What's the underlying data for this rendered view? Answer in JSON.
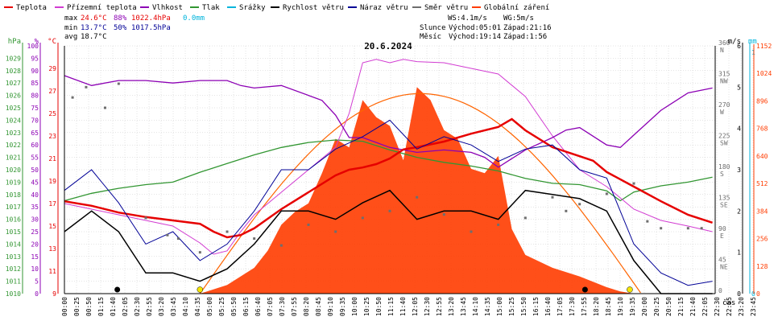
{
  "legend": [
    {
      "label": "Teplota",
      "color": "#e60000"
    },
    {
      "label": "Přízemní teplota",
      "color": "#d23cd2"
    },
    {
      "label": "Vlhkost",
      "color": "#8c00b4"
    },
    {
      "label": "Tlak",
      "color": "#329632"
    },
    {
      "label": "Srážky",
      "color": "#00b4dc"
    },
    {
      "label": "Rychlost větru",
      "color": "#000000"
    },
    {
      "label": "Náraz větru",
      "color": "#000096"
    },
    {
      "label": "Směr větru",
      "color": "#6e6e6e"
    },
    {
      "label": "Globální záření",
      "color": "#ff3c00"
    }
  ],
  "stats": {
    "max_label": "max",
    "max_temp": "24.6°C",
    "max_hum": "88%",
    "max_press": "1022.4hPa",
    "rain": "0.0mm",
    "min_label": "min",
    "min_temp": "13.7°C",
    "min_hum": "50%",
    "min_press": "1017.5hPa",
    "avg_label": "avg",
    "avg_temp": "18.7°C"
  },
  "wind_info": {
    "ws": "WS:4.1m/s",
    "wg": "WG:5m/s"
  },
  "sun": {
    "label": "Slunce",
    "rise": "Východ:05:01",
    "set": "Západ:21:16"
  },
  "moon": {
    "label": "Měsíc",
    "rise": "Východ:19:14",
    "set": "Západ:1:56"
  },
  "date": "20.6.2024",
  "time_axis_label": "čas",
  "colors": {
    "temp": "#e60000",
    "ground": "#d23cd2",
    "hum": "#8c00b4",
    "press": "#329632",
    "rain": "#00b4dc",
    "wind": "#000000",
    "gust": "#000096",
    "dir": "#6e6e6e",
    "rad": "#ff3c00",
    "theory": "#ff6400",
    "grid": "#c8c8c8"
  },
  "chart_data": {
    "type": "line",
    "title": "20.6.2024",
    "x_ticks": [
      "00:00",
      "00:25",
      "00:50",
      "01:15",
      "01:40",
      "02:05",
      "02:30",
      "02:55",
      "03:20",
      "03:45",
      "04:10",
      "04:35",
      "05:00",
      "05:25",
      "05:50",
      "06:15",
      "06:40",
      "07:05",
      "07:30",
      "07:55",
      "08:20",
      "08:45",
      "09:10",
      "09:35",
      "10:00",
      "10:25",
      "10:50",
      "11:15",
      "11:40",
      "12:05",
      "12:30",
      "12:55",
      "13:20",
      "13:45",
      "14:10",
      "14:35",
      "15:00",
      "15:25",
      "15:50",
      "16:15",
      "16:40",
      "17:05",
      "17:30",
      "17:55",
      "18:20",
      "18:45",
      "19:10",
      "19:35",
      "20:00",
      "20:25",
      "20:50",
      "21:15",
      "21:40",
      "22:05",
      "22:30",
      "22:55",
      "23:20",
      "23:45"
    ],
    "axes": {
      "pressure": {
        "label": "hPa",
        "range": [
          1010,
          1030
        ],
        "ticks": [
          1010,
          1011,
          1012,
          1013,
          1014,
          1015,
          1016,
          1017,
          1018,
          1019,
          1020,
          1021,
          1022,
          1023,
          1024,
          1025,
          1026,
          1027,
          1028,
          1029
        ]
      },
      "humidity": {
        "label": "%",
        "range": [
          0,
          100
        ],
        "ticks": [
          0,
          5,
          10,
          15,
          20,
          25,
          30,
          35,
          40,
          45,
          50,
          55,
          60,
          65,
          70,
          75,
          80,
          85,
          90,
          95,
          100
        ]
      },
      "temperature": {
        "label": "°C",
        "range": [
          9,
          31
        ],
        "ticks": [
          9,
          11,
          13,
          15,
          17,
          19,
          21,
          23,
          25,
          27,
          29
        ]
      },
      "wind_direction": {
        "label": "",
        "range": [
          0,
          360
        ],
        "ticks": [
          "0",
          "45 NE",
          "90 E",
          "135 SE",
          "180 S",
          "225 SW",
          "270 W",
          "315 NW",
          "360 N"
        ]
      },
      "wind_speed": {
        "label": "m/s",
        "range": [
          0,
          6
        ],
        "ticks": [
          0,
          1,
          2,
          3,
          4,
          5,
          6
        ]
      },
      "rain": {
        "label": "mm",
        "range": [
          0,
          1
        ],
        "ticks": [
          0,
          1
        ]
      },
      "radiation": {
        "label": "",
        "range": [
          0,
          1152
        ],
        "ticks": [
          0,
          128,
          256,
          384,
          512,
          640,
          768,
          896,
          1024,
          1152
        ]
      }
    },
    "series": [
      {
        "name": "Teplota",
        "unit": "°C",
        "x": [
          0,
          1,
          2,
          3,
          4,
          5,
          5.5,
          6,
          6.5,
          7,
          8,
          9,
          10,
          10.5,
          11,
          11.5,
          12,
          12.5,
          13,
          14,
          15,
          16,
          16.5,
          17,
          18,
          19,
          19.5,
          20,
          21,
          22,
          23,
          23.9
        ],
        "y": [
          17.2,
          16.8,
          16.2,
          15.8,
          15.5,
          15.2,
          14.5,
          14.0,
          14.2,
          14.8,
          16.5,
          18.0,
          19.5,
          20.0,
          20.2,
          20.5,
          21.0,
          21.8,
          22.0,
          22.5,
          23.2,
          23.8,
          24.5,
          23.5,
          22.0,
          21.2,
          20.8,
          19.8,
          18.5,
          17.2,
          16.0,
          15.3
        ]
      },
      {
        "name": "Přízemní teplota",
        "unit": "°C",
        "x": [
          0,
          1,
          2,
          3,
          4,
          5,
          5.5,
          6,
          6.5,
          7,
          8,
          9,
          9.5,
          10,
          10.5,
          11,
          11.5,
          12,
          12.5,
          13,
          14,
          15,
          16,
          17,
          18,
          19,
          20,
          20.5,
          21,
          22,
          23,
          23.9
        ],
        "y": [
          17.0,
          16.5,
          16.0,
          15.5,
          15.0,
          13.5,
          12.5,
          12.8,
          14.5,
          16.0,
          18.0,
          20.0,
          21.0,
          22.0,
          25.0,
          29.5,
          29.8,
          29.5,
          29.8,
          29.6,
          29.5,
          29.0,
          28.5,
          26.5,
          23.0,
          20.0,
          18.5,
          17.5,
          16.5,
          15.5,
          15.0,
          14.5
        ]
      },
      {
        "name": "Vlhkost",
        "unit": "%",
        "x": [
          0,
          1,
          2,
          3,
          4,
          5,
          6,
          6.5,
          7,
          8,
          9,
          9.5,
          10,
          10.5,
          11,
          11.5,
          12,
          13,
          14,
          15,
          15.5,
          16,
          17,
          18,
          18.5,
          19,
          20,
          20.5,
          21,
          22,
          23,
          23.9
        ],
        "y": [
          88,
          84,
          86,
          86,
          85,
          86,
          86,
          84,
          83,
          84,
          80,
          78,
          72,
          63,
          63,
          61,
          59,
          57,
          58,
          57,
          55,
          51,
          58,
          63,
          66,
          67,
          60,
          59,
          64,
          74,
          81,
          83
        ]
      },
      {
        "name": "Tlak",
        "unit": "hPa",
        "x": [
          0,
          1,
          2,
          3,
          4,
          5,
          6,
          7,
          8,
          9,
          10,
          11,
          12,
          13,
          14,
          15,
          16,
          17,
          18,
          19,
          20,
          20.5,
          21,
          22,
          23,
          23.9
        ],
        "y": [
          1017.5,
          1018.1,
          1018.5,
          1018.8,
          1019.0,
          1019.8,
          1020.5,
          1021.2,
          1021.8,
          1022.2,
          1022.4,
          1022.3,
          1021.6,
          1021.0,
          1020.6,
          1020.3,
          1019.9,
          1019.3,
          1018.9,
          1018.8,
          1018.3,
          1017.5,
          1018.2,
          1018.7,
          1019.0,
          1019.4
        ]
      },
      {
        "name": "Rychlost větru",
        "unit": "m/s",
        "x": [
          0,
          1,
          2,
          3,
          4,
          5,
          6,
          7,
          8,
          9,
          10,
          11,
          12,
          13,
          14,
          15,
          16,
          17,
          18,
          19,
          20,
          21,
          22,
          23,
          23.9
        ],
        "y": [
          1.5,
          2.0,
          1.5,
          0.5,
          0.5,
          0.3,
          0.6,
          1.2,
          2.0,
          2.0,
          1.8,
          2.2,
          2.5,
          1.8,
          2.0,
          2.0,
          1.8,
          2.5,
          2.4,
          2.3,
          2.0,
          0.8,
          0.0,
          0.0,
          0.0
        ]
      },
      {
        "name": "Náraz větru",
        "unit": "m/s",
        "x": [
          0,
          1,
          2,
          3,
          4,
          5,
          6,
          7,
          8,
          9,
          10,
          11,
          12,
          13,
          14,
          15,
          16,
          17,
          18,
          19,
          20,
          21,
          22,
          23,
          23.9
        ],
        "y": [
          2.5,
          3.0,
          2.2,
          1.2,
          1.5,
          0.8,
          1.2,
          2.0,
          3.0,
          3.0,
          3.5,
          3.8,
          4.2,
          3.5,
          3.8,
          3.6,
          3.2,
          3.5,
          3.6,
          3.0,
          2.8,
          1.2,
          0.5,
          0.2,
          0.3
        ]
      },
      {
        "name": "Směr větru",
        "unit": "°",
        "x": [
          0.3,
          0.8,
          1.5,
          2.0,
          3.0,
          3.8,
          4.2,
          5.0,
          6.0,
          7.0,
          8.0,
          9.0,
          10.0,
          11.0,
          12.0,
          13.0,
          14.0,
          15.0,
          16.0,
          17.0,
          18.0,
          18.5,
          19.0,
          20.0,
          21.0,
          21.5,
          22.0,
          23.0,
          23.5
        ],
        "y": [
          285,
          300,
          270,
          305,
          110,
          85,
          80,
          60,
          90,
          80,
          70,
          100,
          90,
          110,
          120,
          140,
          115,
          90,
          100,
          110,
          140,
          120,
          130,
          145,
          160,
          105,
          95,
          95,
          95
        ]
      },
      {
        "name": "Globální záření",
        "unit": "W/m²",
        "x": [
          5.0,
          6.0,
          7.0,
          7.5,
          8.0,
          8.5,
          9.0,
          9.5,
          10.0,
          10.5,
          11.0,
          11.5,
          12.0,
          12.5,
          13.0,
          13.5,
          14.0,
          14.5,
          15.0,
          15.5,
          16.0,
          16.5,
          17.0,
          18.0,
          19.0,
          20.0,
          20.5,
          21.0
        ],
        "y": [
          0,
          40,
          120,
          200,
          320,
          380,
          420,
          560,
          720,
          680,
          900,
          820,
          780,
          620,
          960,
          900,
          760,
          720,
          580,
          560,
          640,
          300,
          180,
          120,
          80,
          30,
          10,
          0
        ]
      }
    ]
  }
}
